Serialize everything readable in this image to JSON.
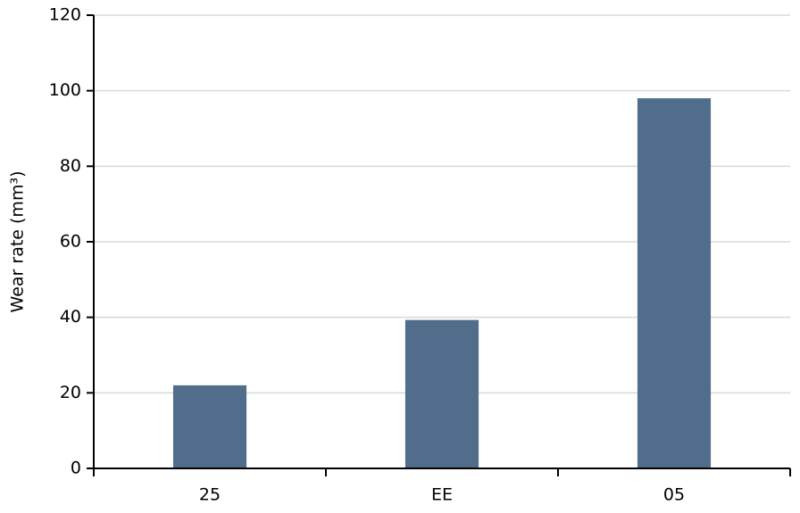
{
  "chart_data": {
    "type": "bar",
    "y_label": "Wear rate (mm³)",
    "categories": [
      "25",
      "EE",
      "05"
    ],
    "values": [
      22,
      39.3,
      98
    ],
    "color": "#506e8b",
    "ylim": [
      0,
      120
    ],
    "yticks": [
      0,
      20,
      40,
      60,
      80,
      100,
      120
    ],
    "grid": true
  }
}
